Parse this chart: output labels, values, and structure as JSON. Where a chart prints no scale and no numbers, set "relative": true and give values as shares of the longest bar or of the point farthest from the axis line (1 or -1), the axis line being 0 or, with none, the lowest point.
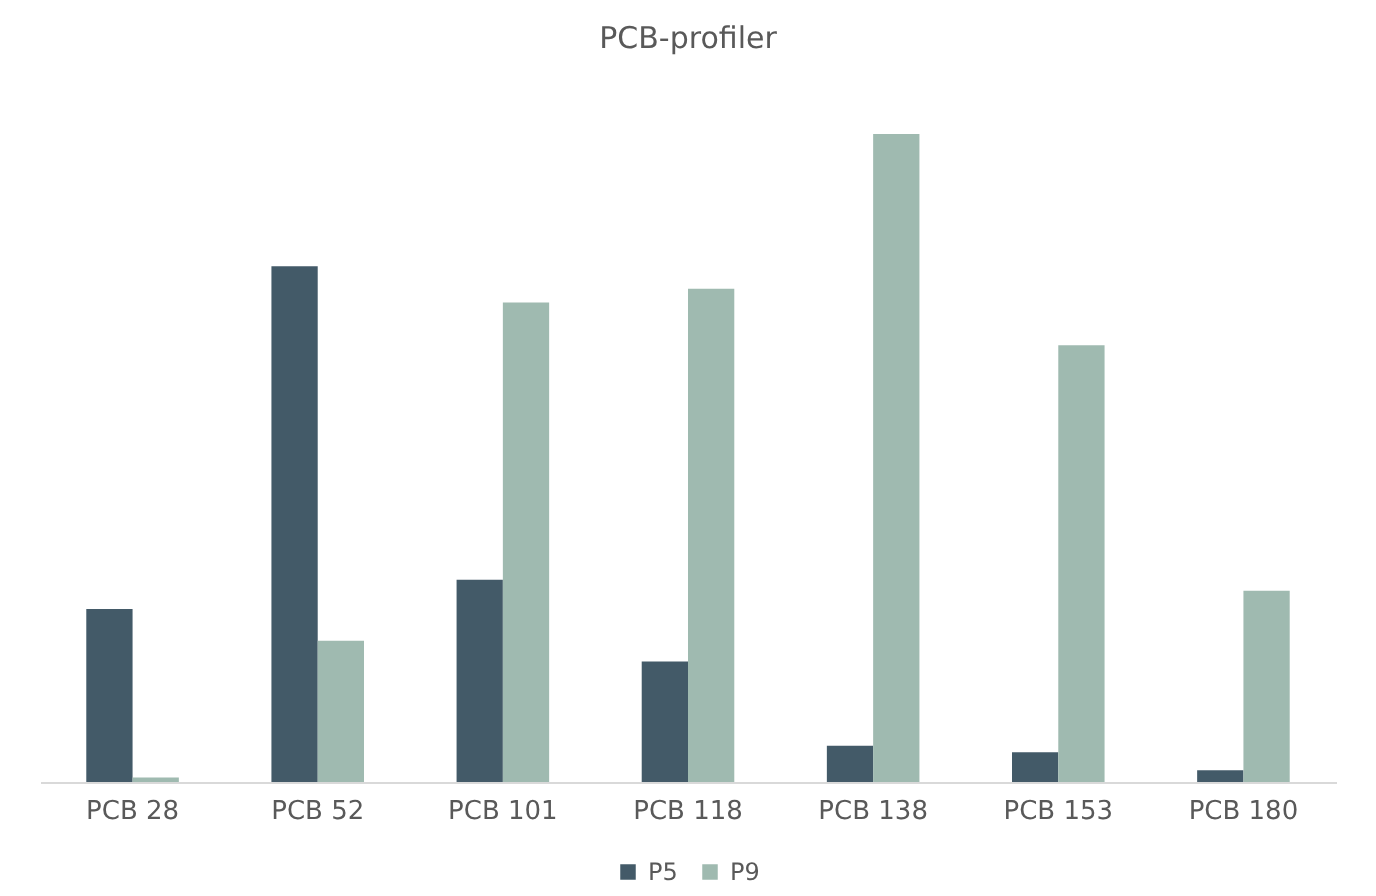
{
  "chart_data": {
    "type": "bar",
    "title": "PCB-profiler",
    "relative": true,
    "legend": "bottom",
    "categories": [
      "PCB 28",
      "PCB 52",
      "PCB 101",
      "PCB 118",
      "PCB 138",
      "PCB 153",
      "PCB 180"
    ],
    "series": [
      {
        "name": "P5",
        "color": "#435a68",
        "values": [
          0.267,
          0.796,
          0.312,
          0.186,
          0.056,
          0.046,
          0.018
        ]
      },
      {
        "name": "P9",
        "color": "#9fbab0",
        "values": [
          0.007,
          0.218,
          0.74,
          0.761,
          1,
          0.674,
          0.295
        ]
      }
    ]
  }
}
